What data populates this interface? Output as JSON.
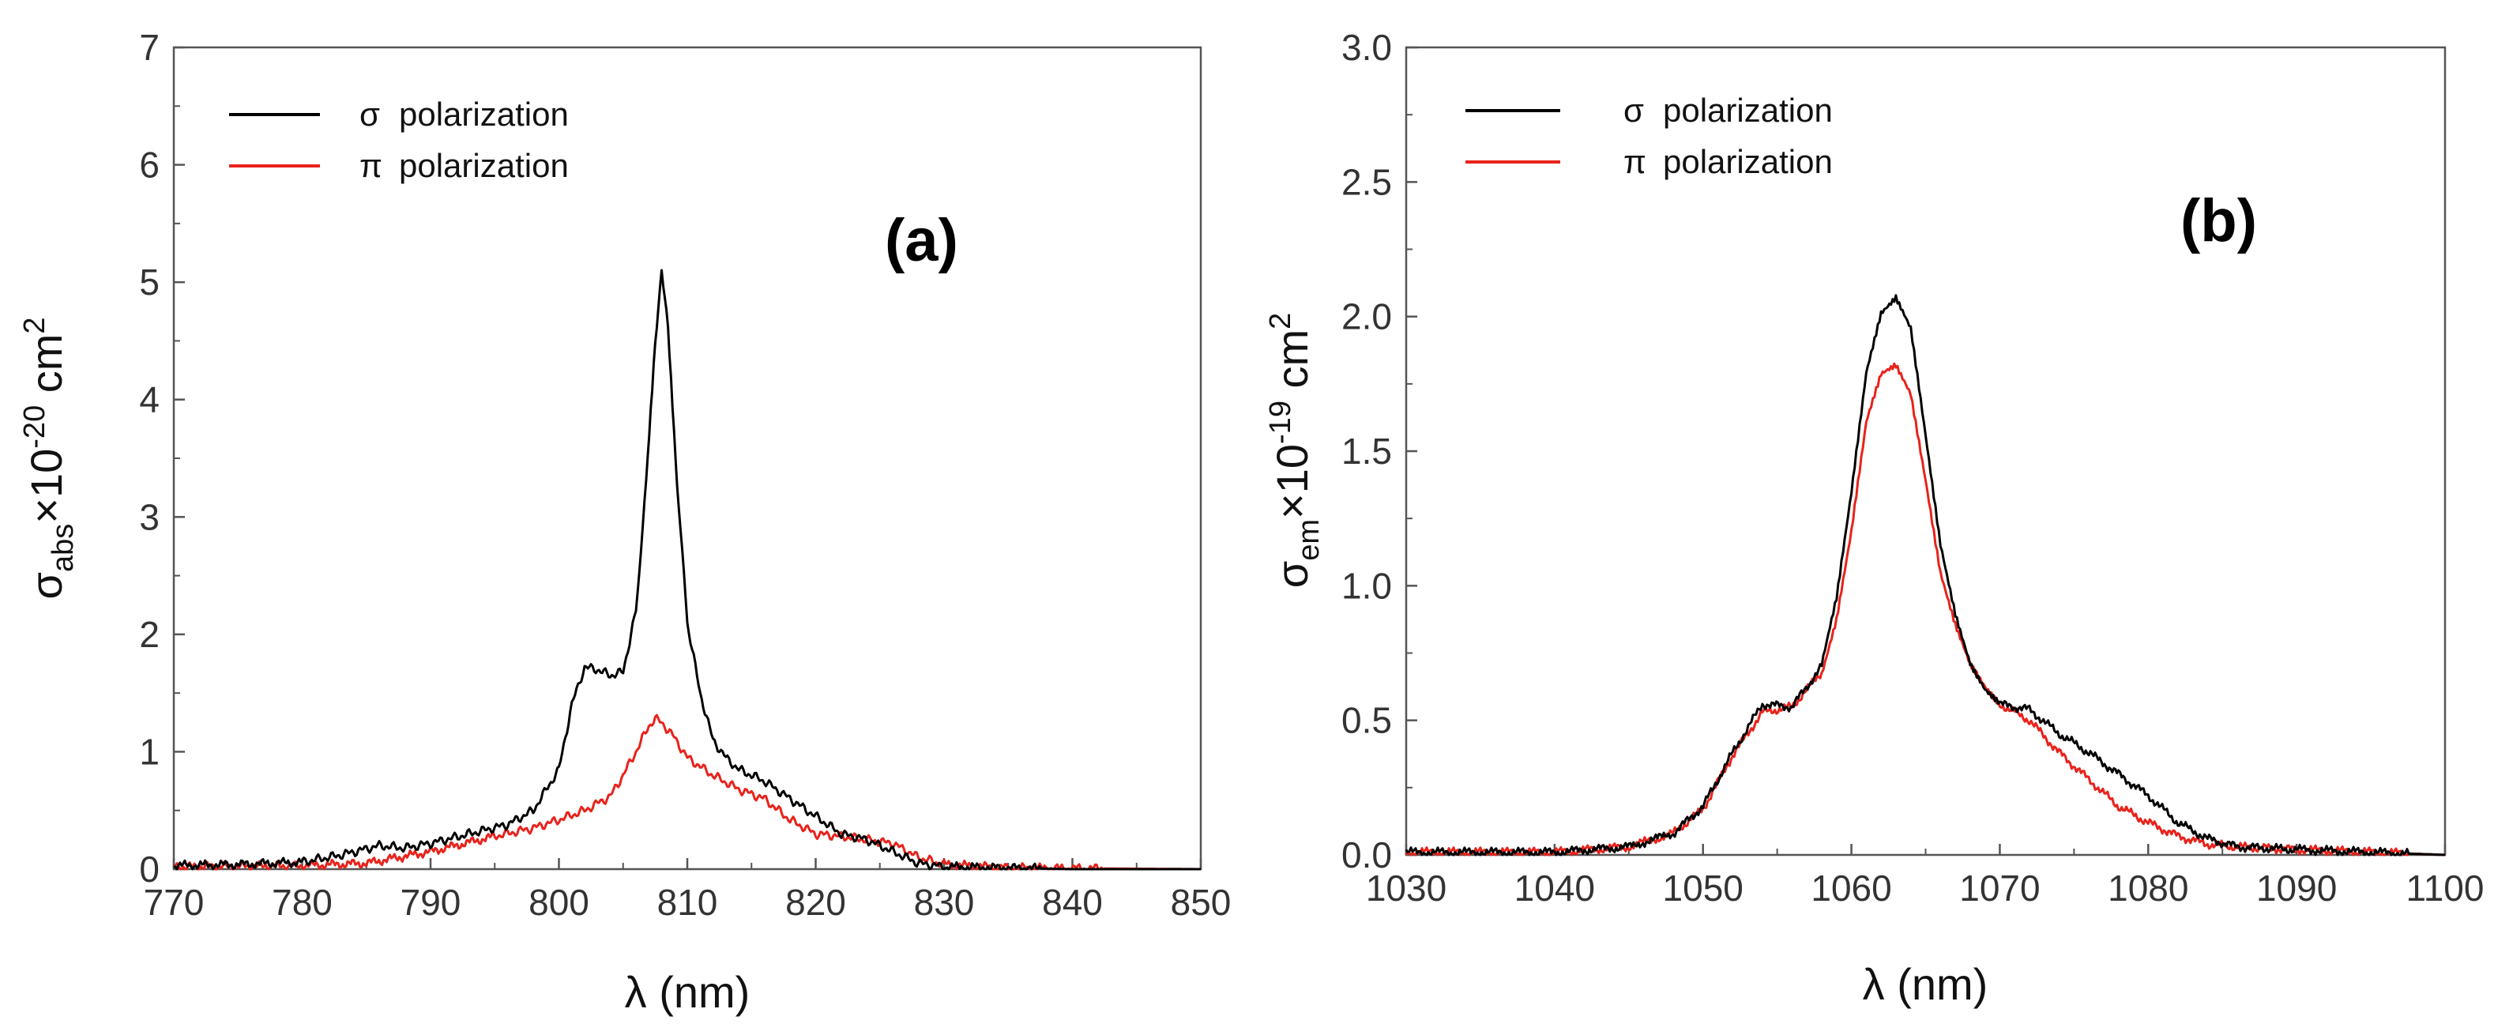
{
  "colors": {
    "sigma": "#000000",
    "pi": "#e8231c"
  },
  "chart_data": [
    {
      "type": "line",
      "panel_label": "(a)",
      "xlabel": "λ (nm)",
      "ylabel_main": "σ",
      "ylabel_sub": "abs",
      "ylabel_times": "×10",
      "ylabel_exp": "-20",
      "ylabel_unit": " cm",
      "ylabel_unit_exp": "2",
      "xlim": [
        770,
        850
      ],
      "ylim": [
        0,
        7
      ],
      "xticks": [
        770,
        780,
        790,
        800,
        810,
        820,
        830,
        840,
        850
      ],
      "xtick_labels": [
        "770",
        "780",
        "790",
        "800",
        "810",
        "820",
        "830",
        "840",
        "850"
      ],
      "yticks": [
        0,
        1,
        2,
        3,
        4,
        5,
        6,
        7
      ],
      "ytick_labels": [
        "0",
        "1",
        "2",
        "3",
        "4",
        "5",
        "6",
        "7"
      ],
      "legend_position": "top-left",
      "series": [
        {
          "name": "σ polarization",
          "legend_symbol": "σ",
          "legend_text": "polarization",
          "color_key": "sigma",
          "x": [
            770,
            775,
            780,
            783,
            786,
            788,
            790,
            793,
            796,
            798,
            800,
            801,
            802,
            803,
            804,
            805,
            806,
            806.8,
            807.5,
            808,
            808.5,
            809.2,
            810,
            811,
            812,
            813,
            814,
            816,
            818,
            820,
            822,
            824,
            826,
            828,
            830,
            835,
            840,
            850
          ],
          "y": [
            0.03,
            0.04,
            0.06,
            0.12,
            0.2,
            0.18,
            0.22,
            0.3,
            0.38,
            0.5,
            0.85,
            1.4,
            1.72,
            1.7,
            1.65,
            1.68,
            2.2,
            3.3,
            4.5,
            5.1,
            4.6,
            3.3,
            2.1,
            1.5,
            1.1,
            0.95,
            0.85,
            0.75,
            0.6,
            0.45,
            0.3,
            0.25,
            0.15,
            0.05,
            0.02,
            0.01,
            0.0,
            0.0
          ]
        },
        {
          "name": "π polarization",
          "legend_symbol": "π",
          "legend_text": "polarization",
          "color_key": "pi",
          "x": [
            770,
            780,
            785,
            790,
            795,
            798,
            800,
            802,
            804,
            805,
            806,
            807,
            807.5,
            808,
            809,
            810,
            812,
            814,
            816,
            818,
            820,
            822,
            824,
            826,
            828,
            830,
            835,
            850
          ],
          "y": [
            0.02,
            0.03,
            0.05,
            0.15,
            0.28,
            0.35,
            0.42,
            0.5,
            0.62,
            0.8,
            1.0,
            1.22,
            1.28,
            1.25,
            1.12,
            0.95,
            0.8,
            0.68,
            0.6,
            0.42,
            0.3,
            0.28,
            0.25,
            0.22,
            0.1,
            0.04,
            0.01,
            0.0
          ]
        }
      ]
    },
    {
      "type": "line",
      "panel_label": "(b)",
      "xlabel": "λ (nm)",
      "ylabel_main": "σ",
      "ylabel_sub": "em",
      "ylabel_times": "×10",
      "ylabel_exp": "-19",
      "ylabel_unit": " cm",
      "ylabel_unit_exp": "2",
      "xlim": [
        1030,
        1100
      ],
      "ylim": [
        0,
        3.0
      ],
      "xticks": [
        1030,
        1040,
        1050,
        1060,
        1070,
        1080,
        1090,
        1100
      ],
      "xtick_labels": [
        "1030",
        "1040",
        "1050",
        "1060",
        "1070",
        "1080",
        "1090",
        "1100"
      ],
      "yticks": [
        0,
        0.5,
        1.0,
        1.5,
        2.0,
        2.5,
        3.0
      ],
      "ytick_labels": [
        "0.0",
        "0.5",
        "1.0",
        "1.5",
        "2.0",
        "2.5",
        "3.0"
      ],
      "legend_position": "top-left",
      "series": [
        {
          "name": "σ polarization",
          "legend_symbol": "σ",
          "legend_text": "polarization",
          "color_key": "sigma",
          "x": [
            1030,
            1040,
            1045,
            1048,
            1050,
            1052,
            1054,
            1056,
            1058,
            1059,
            1060,
            1061,
            1062,
            1063,
            1064,
            1065,
            1066,
            1067,
            1068,
            1069,
            1070,
            1072,
            1074,
            1076,
            1078,
            1080,
            1082,
            1084,
            1086,
            1090,
            1095,
            1100
          ],
          "y": [
            0.01,
            0.01,
            0.03,
            0.08,
            0.18,
            0.38,
            0.56,
            0.55,
            0.7,
            0.95,
            1.35,
            1.8,
            2.02,
            2.07,
            1.95,
            1.55,
            1.15,
            0.9,
            0.72,
            0.62,
            0.56,
            0.54,
            0.45,
            0.38,
            0.3,
            0.22,
            0.12,
            0.06,
            0.03,
            0.02,
            0.01,
            0.0
          ]
        },
        {
          "name": "π polarization",
          "legend_symbol": "π",
          "legend_text": "polarization",
          "color_key": "pi",
          "x": [
            1030,
            1040,
            1045,
            1048,
            1050,
            1052,
            1054,
            1056,
            1058,
            1059,
            1060,
            1061,
            1062,
            1063,
            1064,
            1065,
            1066,
            1067,
            1068,
            1069,
            1070,
            1072,
            1074,
            1076,
            1078,
            1080,
            1082,
            1084,
            1086,
            1090,
            1095,
            1100
          ],
          "y": [
            0.01,
            0.01,
            0.03,
            0.08,
            0.17,
            0.37,
            0.53,
            0.55,
            0.68,
            0.88,
            1.2,
            1.6,
            1.78,
            1.82,
            1.72,
            1.4,
            1.05,
            0.85,
            0.7,
            0.62,
            0.56,
            0.5,
            0.38,
            0.28,
            0.18,
            0.12,
            0.07,
            0.04,
            0.03,
            0.02,
            0.01,
            0.0
          ]
        }
      ]
    }
  ]
}
